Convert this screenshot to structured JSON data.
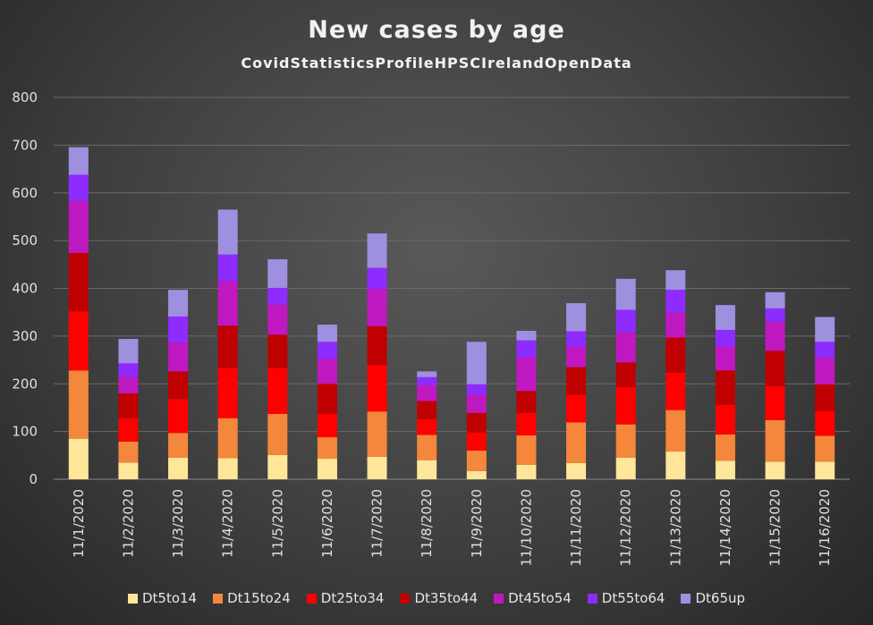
{
  "chart_data": {
    "type": "bar",
    "stacked": true,
    "title": "New cases by age",
    "subtitle": "CovidStatisticsProfileHPSCIrelandOpenData",
    "xlabel": "",
    "ylabel": "",
    "ylim": [
      0,
      800
    ],
    "yticks": [
      0,
      100,
      200,
      300,
      400,
      500,
      600,
      700,
      800
    ],
    "grid": true,
    "legend_position": "bottom",
    "categories": [
      "11/1/2020",
      "11/2/2020",
      "11/3/2020",
      "11/4/2020",
      "11/5/2020",
      "11/6/2020",
      "11/7/2020",
      "11/8/2020",
      "11/9/2020",
      "11/10/2020",
      "11/11/2020",
      "11/12/2020",
      "11/13/2020",
      "11/14/2020",
      "11/15/2020",
      "11/16/2020"
    ],
    "series": [
      {
        "name": "Dt5to14",
        "color": "#ffe699",
        "values": [
          85,
          35,
          45,
          44,
          51,
          43,
          47,
          40,
          17,
          30,
          34,
          45,
          58,
          39,
          37,
          37
        ]
      },
      {
        "name": "Dt15to24",
        "color": "#f4873b",
        "values": [
          143,
          44,
          52,
          84,
          86,
          45,
          95,
          53,
          43,
          62,
          85,
          70,
          87,
          55,
          87,
          54
        ]
      },
      {
        "name": "Dt25to34",
        "color": "#ff0000",
        "values": [
          124,
          49,
          71,
          105,
          96,
          49,
          97,
          33,
          38,
          47,
          58,
          78,
          78,
          62,
          71,
          52
        ]
      },
      {
        "name": "Dt35to44",
        "color": "#c00000",
        "values": [
          122,
          52,
          58,
          89,
          70,
          63,
          82,
          38,
          41,
          46,
          58,
          52,
          74,
          72,
          74,
          56
        ]
      },
      {
        "name": "Dt45to54",
        "color": "#c018c0",
        "values": [
          109,
          35,
          60,
          93,
          63,
          52,
          78,
          33,
          38,
          70,
          42,
          63,
          52,
          50,
          61,
          56
        ]
      },
      {
        "name": "Dt55to64",
        "color": "#8e2bff",
        "values": [
          55,
          28,
          55,
          56,
          35,
          36,
          44,
          17,
          22,
          36,
          33,
          47,
          48,
          35,
          28,
          33
        ]
      },
      {
        "name": "Dt65up",
        "color": "#9f8fdf",
        "values": [
          58,
          51,
          56,
          94,
          60,
          36,
          72,
          12,
          89,
          20,
          59,
          65,
          41,
          52,
          34,
          52
        ]
      }
    ]
  }
}
